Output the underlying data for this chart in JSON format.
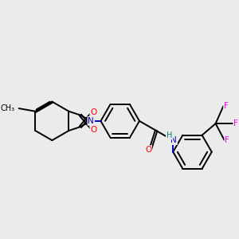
{
  "background_color": "#ebebeb",
  "atom_colors": {
    "C": "#000000",
    "N": "#0000cc",
    "O": "#ff0000",
    "F": "#ff00ff",
    "H": "#008080"
  },
  "figsize": [
    3.0,
    3.0
  ],
  "dpi": 100,
  "bond_lw": 1.4,
  "double_sep": 2.8,
  "font_size": 7.5
}
